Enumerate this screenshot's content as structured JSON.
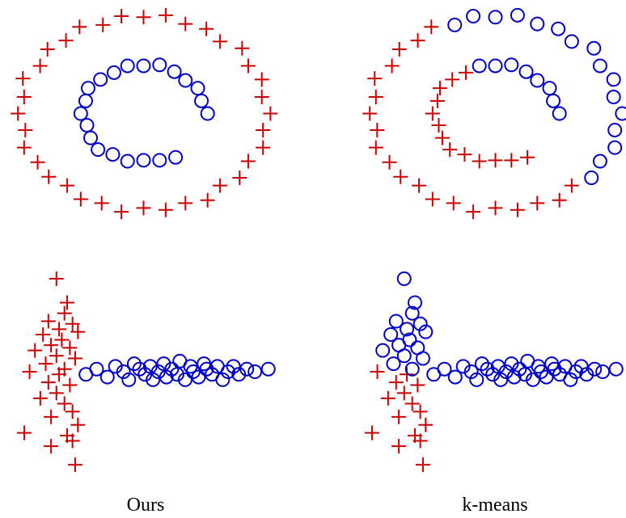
{
  "captions": [
    "Ours",
    "k-means"
  ],
  "chart_data": [
    {
      "type": "scatter",
      "xlim": [
        -1.1,
        1.1
      ],
      "ylim": [
        -1.1,
        1.1
      ],
      "series": [
        {
          "marker": "plus",
          "color": "#cc0000",
          "x": [
            1.03,
            0.96,
            0.96,
            0.85,
            0.8,
            0.62,
            0.51,
            0.34,
            0.18,
            0,
            -0.18,
            -0.33,
            -0.52,
            -0.63,
            -0.78,
            -0.84,
            -0.98,
            -0.97,
            -1.02,
            -0.96,
            -0.97,
            -0.86,
            -0.77,
            -0.62,
            -0.51,
            -0.34,
            -0.18,
            0,
            0.18,
            0.34,
            0.52,
            0.62,
            0.78,
            0.85,
            0.97,
            0.97
          ],
          "y": [
            0,
            0.17,
            0.35,
            0.49,
            0.67,
            0.74,
            0.87,
            0.92,
            1.01,
            0.99,
            1,
            0.91,
            0.89,
            0.75,
            0.66,
            0.49,
            0.36,
            0.17,
            0,
            -0.17,
            -0.35,
            -0.5,
            -0.65,
            -0.74,
            -0.88,
            -0.92,
            -1.01,
            -0.97,
            -0.99,
            -0.92,
            -0.89,
            -0.74,
            -0.66,
            -0.49,
            -0.35,
            -0.17
          ]
        },
        {
          "marker": "circle",
          "color": "#0000cc",
          "x": [
            0.52,
            0.47,
            0.44,
            0.34,
            0.25,
            0.13,
            0,
            -0.13,
            -0.24,
            -0.35,
            -0.45,
            -0.47,
            -0.51,
            -0.46,
            -0.43,
            -0.37,
            -0.25,
            -0.13,
            0,
            0.13,
            0.26
          ],
          "y": [
            0,
            0.13,
            0.26,
            0.34,
            0.43,
            0.5,
            0.49,
            0.49,
            0.42,
            0.35,
            0.26,
            0.13,
            0,
            -0.12,
            -0.25,
            -0.37,
            -0.42,
            -0.49,
            -0.48,
            -0.48,
            -0.45
          ]
        }
      ]
    },
    {
      "type": "scatter",
      "xlim": [
        -1.1,
        1.1
      ],
      "ylim": [
        -1.1,
        1.1
      ],
      "series": [
        {
          "marker": "plus",
          "color": "#cc0000",
          "x": [
            -0.52,
            -0.63,
            -0.78,
            -0.84,
            -0.98,
            -0.97,
            -1.02,
            -0.96,
            -0.97,
            -0.86,
            -0.77,
            -0.62,
            -0.51,
            -0.34,
            -0.18,
            0,
            0.18,
            0.34,
            0.52,
            0.62,
            -0.24,
            -0.35,
            -0.45,
            -0.47,
            -0.51,
            -0.46,
            -0.43,
            -0.37,
            -0.25,
            -0.13,
            0,
            0.13,
            0.26
          ],
          "y": [
            0.89,
            0.75,
            0.66,
            0.49,
            0.36,
            0.17,
            0,
            -0.17,
            -0.35,
            -0.5,
            -0.65,
            -0.74,
            -0.88,
            -0.92,
            -1.01,
            -0.97,
            -0.99,
            -0.92,
            -0.89,
            -0.74,
            0.42,
            0.35,
            0.26,
            0.13,
            0,
            -0.12,
            -0.25,
            -0.37,
            -0.42,
            -0.49,
            -0.48,
            -0.48,
            -0.45
          ]
        },
        {
          "marker": "circle",
          "color": "#0000cc",
          "x": [
            1.03,
            0.96,
            0.96,
            0.85,
            0.8,
            0.62,
            0.51,
            0.34,
            0.18,
            0,
            -0.18,
            -0.33,
            0.78,
            0.85,
            0.97,
            0.97,
            0.52,
            0.47,
            0.44,
            0.34,
            0.25,
            0.13,
            0,
            -0.13
          ],
          "y": [
            0,
            0.17,
            0.35,
            0.49,
            0.67,
            0.74,
            0.87,
            0.92,
            1.01,
            0.99,
            1,
            0.91,
            -0.66,
            -0.49,
            -0.35,
            -0.17,
            0,
            0.13,
            0.26,
            0.34,
            0.43,
            0.5,
            0.49,
            0.49
          ]
        }
      ]
    },
    {
      "type": "scatter",
      "xlim": [
        -1.5,
        8.3
      ],
      "ylim": [
        -3.8,
        3.8
      ],
      "series": [
        {
          "marker": "plus",
          "color": "#cc0000",
          "x": [
            0,
            0.4,
            0.3,
            -0.3,
            0.6,
            0.1,
            -0.5,
            0.8,
            0.2,
            -0.2,
            0.5,
            -0.8,
            0,
            0.7,
            -0.4,
            0.3,
            -1,
            0.1,
            -0.3,
            0.5,
            0,
            -0.6,
            0.3,
            0.6,
            -0.2,
            0.8,
            -1.2,
            0.4,
            -0.2,
            0.6,
            0.7
          ],
          "y": [
            3.5,
            2.6,
            2.2,
            1.9,
            1.8,
            1.6,
            1.4,
            1.5,
            1.2,
            1,
            0.9,
            0.8,
            0.6,
            0.5,
            0.3,
            0.1,
            0,
            -0.1,
            -0.4,
            -0.5,
            -0.8,
            -1,
            -1.2,
            -1.5,
            -1.7,
            -2,
            -2.3,
            -2.4,
            -2.8,
            -2.6,
            -3.5
          ]
        },
        {
          "marker": "circle",
          "color": "#0000cc",
          "x": [
            1.1,
            1.5,
            1.9,
            2.2,
            2.5,
            2.7,
            2.9,
            3.1,
            3.3,
            3.5,
            3.6,
            3.8,
            4,
            4.1,
            4.3,
            4.5,
            4.6,
            4.8,
            5,
            5.1,
            5.3,
            5.5,
            5.6,
            5.8,
            6,
            6.2,
            6.4,
            6.6,
            6.8,
            7.1,
            7.4,
            7.9
          ],
          "y": [
            -0.1,
            0.1,
            -0.2,
            0.2,
            0,
            -0.3,
            0.3,
            0.1,
            -0.1,
            0.2,
            -0.3,
            0,
            0.3,
            -0.2,
            0.1,
            -0.1,
            0.4,
            -0.3,
            0.2,
            0,
            -0.2,
            0.3,
            0.1,
            -0.1,
            0.2,
            -0.3,
            0,
            0.2,
            -0.1,
            0.1,
            0,
            0.1
          ]
        }
      ]
    },
    {
      "type": "scatter",
      "xlim": [
        -1.5,
        8.3
      ],
      "ylim": [
        -3.8,
        3.8
      ],
      "series": [
        {
          "marker": "plus",
          "color": "#cc0000",
          "x": [
            -1,
            0.1,
            -0.3,
            0.5,
            0,
            -0.6,
            0.3,
            0.6,
            -0.2,
            0.8,
            -1.2,
            0.4,
            -0.2,
            0.6,
            0.7
          ],
          "y": [
            0,
            -0.1,
            -0.4,
            -0.5,
            -0.8,
            -1,
            -1.2,
            -1.5,
            -1.7,
            -2,
            -2.3,
            -2.4,
            -2.8,
            -2.6,
            -3.5
          ]
        },
        {
          "marker": "circle",
          "color": "#0000cc",
          "x": [
            0,
            0.4,
            0.3,
            -0.3,
            0.6,
            0.1,
            -0.5,
            0.8,
            0.2,
            -0.2,
            0.5,
            -0.8,
            0,
            0.7,
            -0.4,
            0.3,
            1.1,
            1.5,
            1.9,
            2.2,
            2.5,
            2.7,
            2.9,
            3.1,
            3.3,
            3.5,
            3.6,
            3.8,
            4,
            4.1,
            4.3,
            4.5,
            4.6,
            4.8,
            5,
            5.1,
            5.3,
            5.5,
            5.6,
            5.8,
            6,
            6.2,
            6.4,
            6.6,
            6.8,
            7.1,
            7.4,
            7.9
          ],
          "y": [
            3.5,
            2.6,
            2.2,
            1.9,
            1.8,
            1.6,
            1.4,
            1.5,
            1.2,
            1,
            0.9,
            0.8,
            0.6,
            0.5,
            0.3,
            0.1,
            -0.1,
            0.1,
            -0.2,
            0.2,
            0,
            -0.3,
            0.3,
            0.1,
            -0.1,
            0.2,
            -0.3,
            0,
            0.3,
            -0.2,
            0.1,
            -0.1,
            0.4,
            -0.3,
            0.2,
            0,
            -0.2,
            0.3,
            0.1,
            -0.1,
            0.2,
            -0.3,
            0,
            0.2,
            -0.1,
            0.1,
            0,
            0.1
          ]
        }
      ]
    }
  ]
}
